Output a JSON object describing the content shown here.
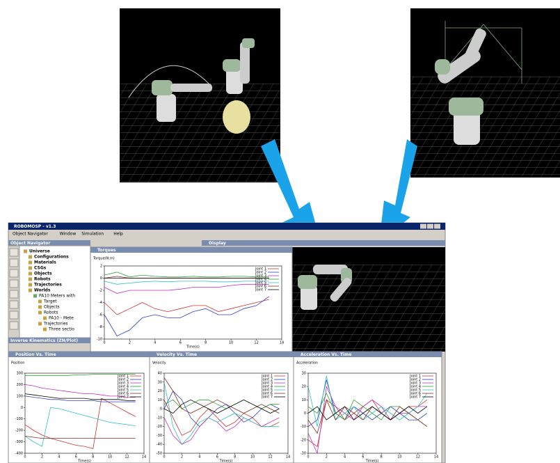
{
  "window": {
    "title": "ROBOMOSP - v1.3",
    "menu": [
      "Object Navigator",
      "Window",
      "Simulation",
      "Help"
    ]
  },
  "navigator": {
    "title": "Object Navigator",
    "tree": [
      "Universe",
      "Configurations",
      "Materials",
      "CSGs",
      "Objects",
      "Robots",
      "Trajectories",
      "Worlds",
      "PA10 Meters with",
      "Target",
      "Objects",
      "Robots",
      "PA10 - Mete",
      "Trajectories",
      "Three sectio"
    ]
  },
  "ik_panel": {
    "title": "Inverse Kinematics (ZN/Plot)"
  },
  "display": {
    "title": "Display"
  },
  "charts": [
    {
      "type": "line",
      "title": "Torques",
      "y_label": "Torque(N.m)",
      "x_label": "Time(s)",
      "x": [
        0,
        1,
        2,
        3,
        4,
        5,
        6,
        7,
        8,
        9,
        10,
        11,
        12,
        13
      ],
      "xlim": [
        0,
        14
      ],
      "xticks": [
        0,
        2,
        4,
        6,
        8,
        10,
        12,
        14
      ],
      "ylim": [
        -10,
        2
      ],
      "yticks": [
        -10,
        -8,
        -6,
        -4,
        -2,
        0,
        2
      ],
      "series": [
        {
          "name": "Joint 1",
          "color": "#d03030",
          "values": [
            -4,
            -6,
            -5,
            -4,
            -5,
            -5.5,
            -5,
            -4.5,
            -4.5,
            -5.5,
            -5,
            -4.5,
            -4,
            -3.5
          ]
        },
        {
          "name": "Joint 2",
          "color": "#3040c0",
          "values": [
            -6,
            -9.5,
            -8.5,
            -6.5,
            -6,
            -6.5,
            -6.5,
            -5.5,
            -5,
            -6,
            -6,
            -5,
            -4.5,
            -3
          ]
        },
        {
          "name": "Joint 3",
          "color": "#c030c0",
          "values": [
            -1.5,
            -2.5,
            -2,
            -2,
            -2,
            -2,
            -1.8,
            -1.5,
            -1.5,
            -1.5,
            -1.2,
            -1,
            -1,
            -1
          ]
        },
        {
          "name": "Joint 4",
          "color": "#30a030",
          "values": [
            0.5,
            1,
            0.2,
            0.5,
            0.3,
            0.2,
            0.2,
            0.3,
            0.2,
            0.2,
            0.3,
            0.3,
            0.2,
            0.2
          ]
        },
        {
          "name": "Joint 5",
          "color": "#30c0c0",
          "values": [
            -0.5,
            -1,
            -0.8,
            -0.6,
            -0.5,
            -0.6,
            -0.5,
            -0.5,
            -0.5,
            -0.6,
            -0.6,
            -0.5,
            -0.5,
            -0.5
          ]
        },
        {
          "name": "Joint 6",
          "color": "#803020",
          "values": [
            0,
            0.3,
            0,
            0,
            0,
            0,
            0,
            0,
            0,
            0,
            0,
            0,
            0,
            0
          ]
        },
        {
          "name": "Joint 7",
          "color": "#000000",
          "values": [
            0,
            0,
            0,
            0,
            0,
            0,
            0,
            0,
            0,
            0,
            0,
            0,
            0,
            0
          ]
        }
      ]
    },
    {
      "type": "line",
      "title": "Position Vs. Time",
      "y_label": "Position",
      "x_label": "Time(s)",
      "x": [
        0,
        1,
        2,
        3,
        4,
        5,
        6,
        7,
        8,
        9,
        10,
        11,
        12,
        13
      ],
      "xlim": [
        0,
        14
      ],
      "xticks": [
        0,
        2,
        4,
        6,
        8,
        10,
        12,
        14
      ],
      "ylim": [
        -400,
        300
      ],
      "yticks": [
        -400,
        -300,
        -200,
        -100,
        0,
        100,
        200,
        300
      ],
      "series": [
        {
          "name": "Joint 1",
          "color": "#d03030",
          "values": [
            -150,
            -200,
            -240,
            -270,
            -290,
            -310,
            -330,
            -340,
            -360,
            80,
            40,
            0,
            -40,
            -80
          ]
        },
        {
          "name": "Joint 2",
          "color": "#3040c0",
          "values": [
            100,
            90,
            80,
            70,
            70,
            60,
            60,
            60,
            60,
            50,
            50,
            50,
            50,
            50
          ]
        },
        {
          "name": "Joint 3",
          "color": "#c030c0",
          "values": [
            200,
            190,
            170,
            160,
            150,
            140,
            130,
            120,
            120,
            110,
            100,
            100,
            90,
            90
          ]
        },
        {
          "name": "Joint 4",
          "color": "#30a030",
          "values": [
            280,
            280,
            280,
            280,
            280,
            280,
            285,
            285,
            290,
            290,
            290,
            290,
            290,
            290
          ]
        },
        {
          "name": "Joint 5",
          "color": "#30c0c0",
          "values": [
            -250,
            -300,
            -340,
            0,
            -10,
            -30,
            -50,
            -70,
            -90,
            -110,
            -130,
            -140,
            -150,
            -160
          ]
        },
        {
          "name": "Joint 6",
          "color": "#803020",
          "values": [
            -250,
            -260,
            -270,
            -270,
            -270,
            -270,
            -270,
            -270,
            -270,
            -270,
            -270,
            -270,
            -270,
            -270
          ]
        },
        {
          "name": "Joint 7",
          "color": "#000000",
          "values": [
            120,
            110,
            100,
            90,
            80,
            80,
            80,
            80,
            70,
            70,
            70,
            70,
            60,
            60
          ]
        }
      ]
    },
    {
      "type": "line",
      "title": "Velocity Vs. Time",
      "y_label": "Velocity",
      "x_label": "Time(s)",
      "x": [
        0,
        1,
        2,
        3,
        4,
        5,
        6,
        7,
        8,
        9,
        10,
        11,
        12,
        13
      ],
      "xlim": [
        0,
        14
      ],
      "xticks": [
        0,
        2,
        4,
        6,
        8,
        10,
        12,
        14
      ],
      "ylim": [
        -50,
        40
      ],
      "yticks": [
        -50,
        -40,
        -30,
        -20,
        -10,
        0,
        10,
        20,
        30,
        40
      ],
      "series": [
        {
          "name": "Joint 1",
          "color": "#d03030",
          "values": [
            10,
            -10,
            -30,
            -25,
            -10,
            0,
            -10,
            -20,
            -15,
            -5,
            -10,
            -20,
            -20,
            -15
          ]
        },
        {
          "name": "Joint 2",
          "color": "#3040c0",
          "values": [
            0,
            20,
            10,
            -10,
            -20,
            -10,
            0,
            5,
            -5,
            -15,
            -10,
            0,
            5,
            0
          ]
        },
        {
          "name": "Joint 3",
          "color": "#c030c0",
          "values": [
            -10,
            -30,
            -40,
            -35,
            -20,
            -10,
            -15,
            -25,
            -20,
            -10,
            -15,
            -20,
            -15,
            -10
          ]
        },
        {
          "name": "Joint 4",
          "color": "#30a030",
          "values": [
            5,
            10,
            0,
            5,
            10,
            10,
            5,
            0,
            5,
            10,
            5,
            0,
            5,
            5
          ]
        },
        {
          "name": "Joint 5",
          "color": "#30c0c0",
          "values": [
            30,
            -20,
            -40,
            -30,
            -15,
            -10,
            -15,
            -10,
            -5,
            -10,
            -15,
            -20,
            -20,
            -20
          ]
        },
        {
          "name": "Joint 6",
          "color": "#803020",
          "values": [
            35,
            20,
            0,
            -5,
            0,
            5,
            10,
            5,
            0,
            -5,
            0,
            5,
            0,
            -5
          ]
        },
        {
          "name": "Joint 7",
          "color": "#000000",
          "values": [
            0,
            -5,
            5,
            10,
            5,
            0,
            -5,
            0,
            5,
            10,
            5,
            0,
            -5,
            0
          ]
        }
      ]
    },
    {
      "type": "line",
      "title": "Acceleration Vs. Time",
      "y_label": "Acceleration",
      "x_label": "Time(s)",
      "x": [
        0,
        1,
        2,
        3,
        4,
        5,
        6,
        7,
        8,
        9,
        10,
        11,
        12,
        13
      ],
      "xlim": [
        0,
        14
      ],
      "xticks": [
        0,
        2,
        4,
        6,
        8,
        10,
        12,
        14
      ],
      "ylim": [
        -30,
        30
      ],
      "yticks": [
        -30,
        -20,
        -10,
        0,
        10,
        20,
        30
      ],
      "series": [
        {
          "name": "Joint 1",
          "color": "#d03030",
          "values": [
            -20,
            -25,
            10,
            5,
            -5,
            0,
            5,
            10,
            0,
            -5,
            0,
            5,
            5,
            10
          ]
        },
        {
          "name": "Joint 2",
          "color": "#3040c0",
          "values": [
            -10,
            -5,
            25,
            0,
            -5,
            5,
            0,
            -5,
            0,
            5,
            0,
            -5,
            -5,
            0
          ]
        },
        {
          "name": "Joint 3",
          "color": "#c030c0",
          "values": [
            -15,
            -30,
            20,
            5,
            0,
            -5,
            5,
            10,
            5,
            -5,
            0,
            0,
            5,
            5
          ]
        },
        {
          "name": "Joint 4",
          "color": "#30a030",
          "values": [
            5,
            0,
            15,
            0,
            -5,
            10,
            5,
            0,
            -5,
            5,
            5,
            0,
            -5,
            -10
          ]
        },
        {
          "name": "Joint 5",
          "color": "#30c0c0",
          "values": [
            20,
            -10,
            28,
            -5,
            0,
            5,
            -5,
            0,
            5,
            0,
            -5,
            0,
            5,
            15
          ]
        },
        {
          "name": "Joint 6",
          "color": "#803020",
          "values": [
            -5,
            -15,
            10,
            -5,
            5,
            0,
            -5,
            5,
            0,
            -5,
            5,
            0,
            -5,
            -10
          ]
        },
        {
          "name": "Joint 7",
          "color": "#000000",
          "values": [
            0,
            5,
            -5,
            0,
            5,
            -5,
            0,
            5,
            0,
            -5,
            0,
            5,
            0,
            5
          ]
        }
      ]
    }
  ]
}
